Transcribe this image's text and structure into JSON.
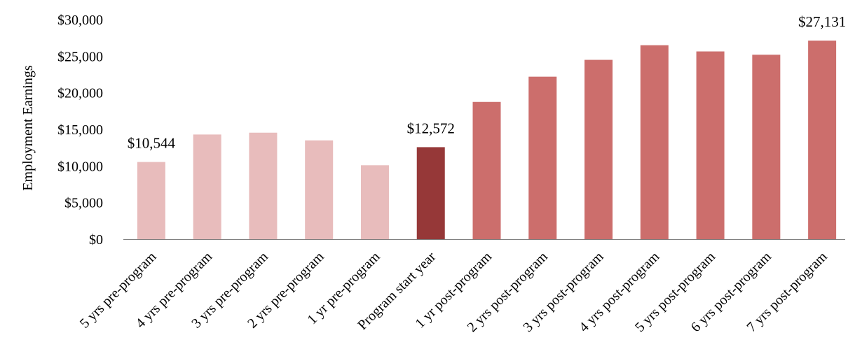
{
  "chart_data": {
    "type": "bar",
    "ylabel": "Employment Earnings",
    "xlabel": "",
    "ylim": [
      0,
      30000
    ],
    "yticks": [
      0,
      5000,
      10000,
      15000,
      20000,
      25000,
      30000
    ],
    "ytick_labels": [
      "$0",
      "$5,000",
      "$10,000",
      "$15,000",
      "$20,000",
      "$25,000",
      "$30,000"
    ],
    "grid": false,
    "categories": [
      "5 yrs pre-program",
      "4 yrs pre-program",
      "3 yrs pre-program",
      "2 yrs pre-program",
      "1 yr pre-program",
      "Program start year",
      "1 yr post-program",
      "2 yrs post-program",
      "3 yrs post-program",
      "4 yrs post-program",
      "5 yrs post-program",
      "6 yrs post-program",
      "7 yrs post-program"
    ],
    "values": [
      10544,
      14300,
      14550,
      13500,
      10100,
      12572,
      18750,
      22200,
      24500,
      26500,
      25650,
      25200,
      27131
    ],
    "bar_colors": [
      "#e8bcbc",
      "#e8bcbc",
      "#e8bcbc",
      "#e8bcbc",
      "#e8bcbc",
      "#963838",
      "#cc6e6c",
      "#cc6e6c",
      "#cc6e6c",
      "#cc6e6c",
      "#cc6e6c",
      "#cc6e6c",
      "#cc6e6c"
    ],
    "data_labels": [
      {
        "index": 0,
        "text": "$10,544"
      },
      {
        "index": 5,
        "text": "$12,572"
      },
      {
        "index": 12,
        "text": "$27,131"
      }
    ]
  }
}
